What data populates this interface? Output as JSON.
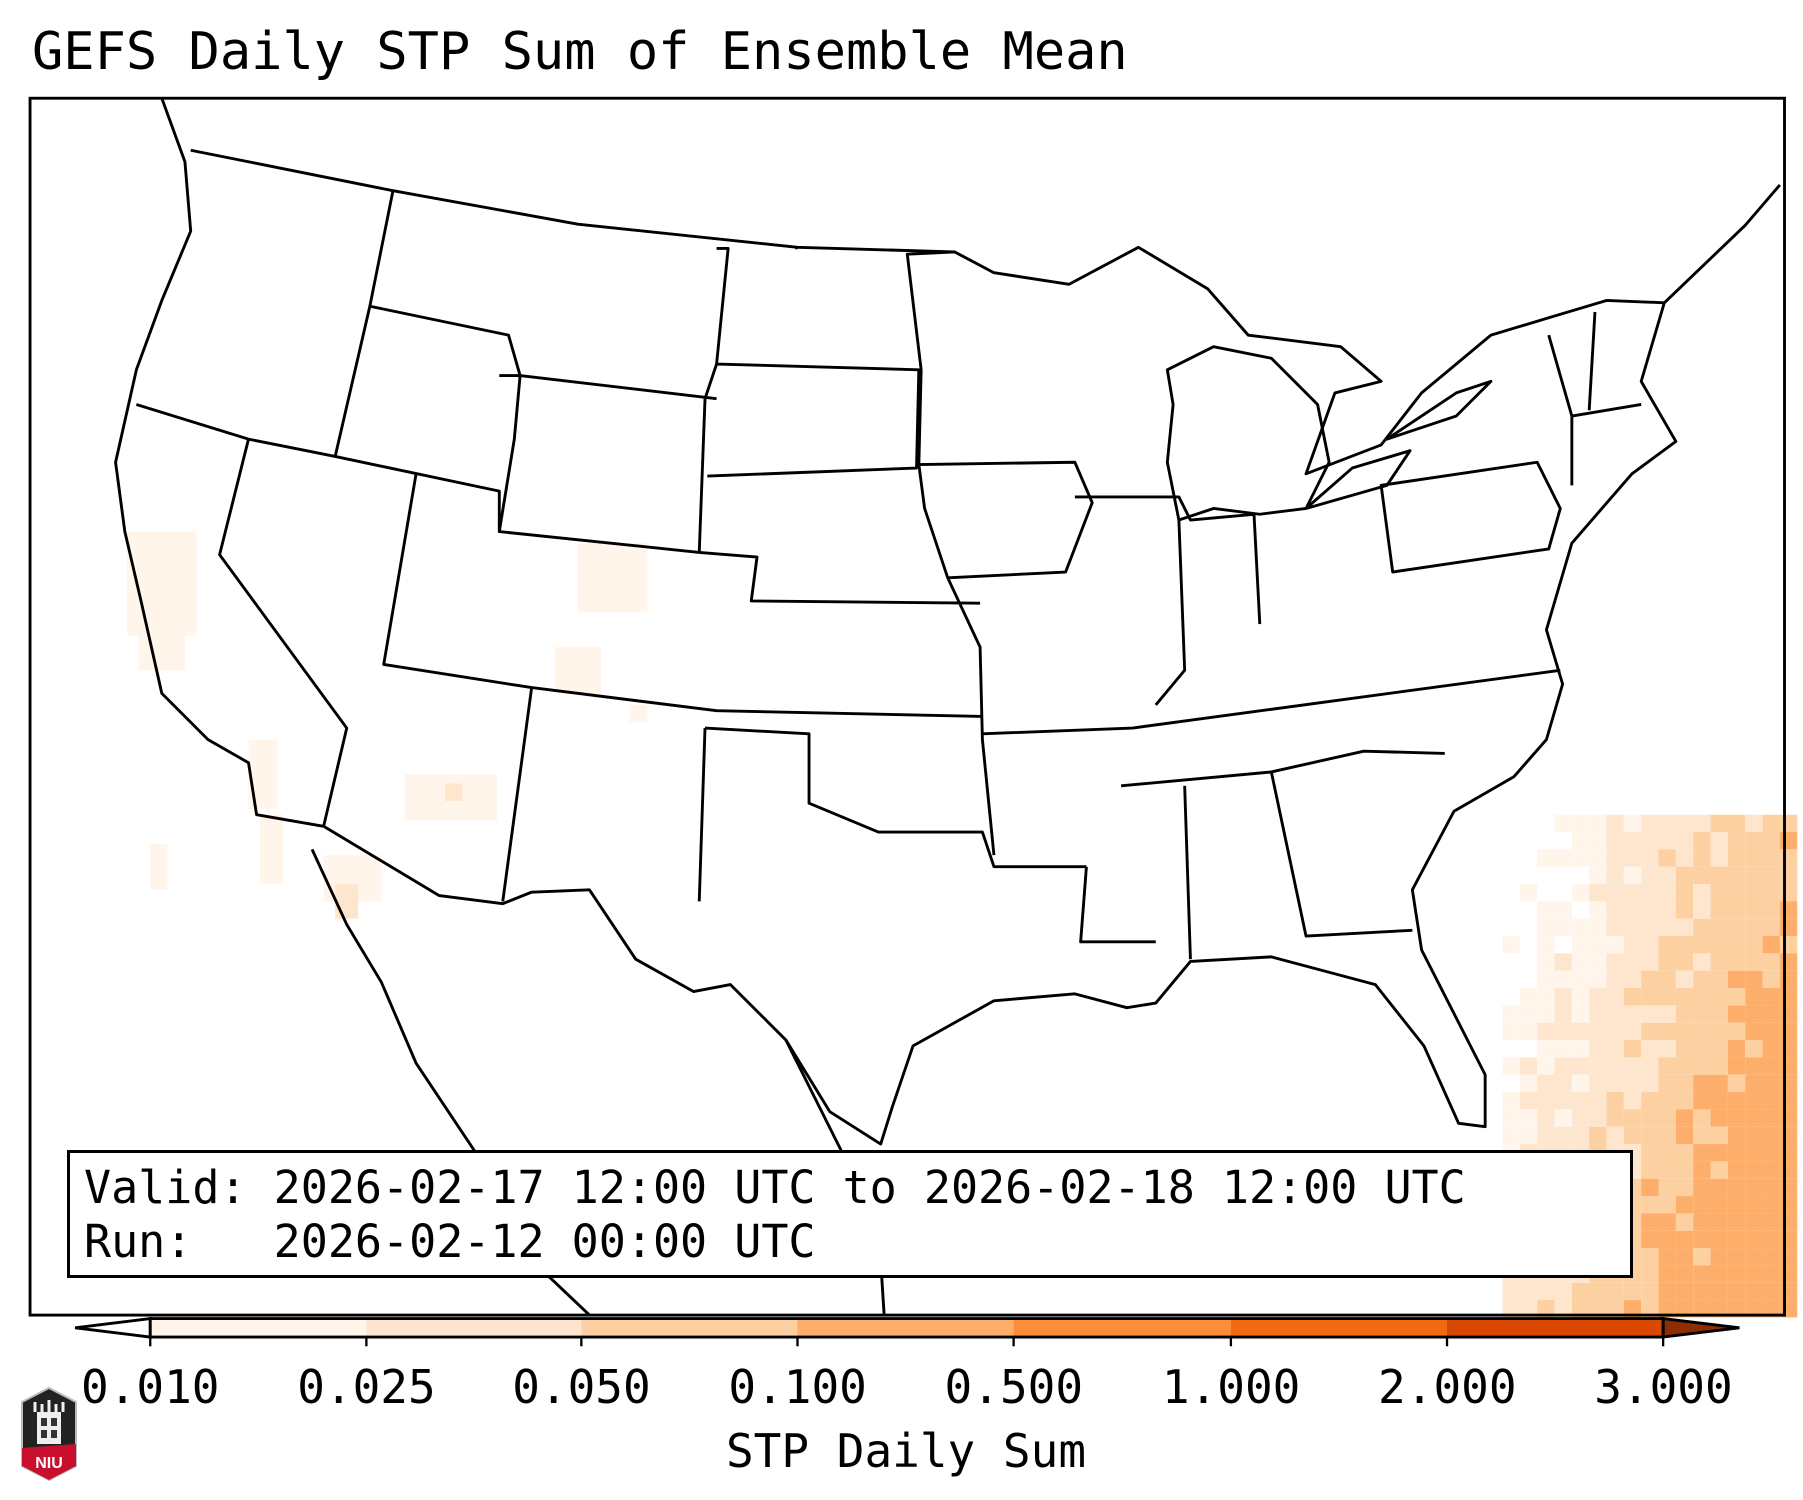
{
  "title": "GEFS Daily STP Sum of Ensemble Mean",
  "info": {
    "valid_label": "Valid:",
    "valid_value": "2026-02-17 12:00 UTC to 2026-02-18 12:00 UTC",
    "run_label": "Run:",
    "run_value": "2026-02-12 00:00 UTC"
  },
  "colorbar": {
    "label": "STP Daily Sum",
    "ticks": [
      "0.010",
      "0.025",
      "0.050",
      "0.100",
      "0.500",
      "1.000",
      "2.000",
      "3.000"
    ],
    "colors": [
      "#fff5eb",
      "#fee6ce",
      "#fdd0a2",
      "#fdae6b",
      "#fd8d3c",
      "#f16913",
      "#d94801",
      "#8c2d04"
    ]
  },
  "logo": {
    "text": "NIU"
  }
}
